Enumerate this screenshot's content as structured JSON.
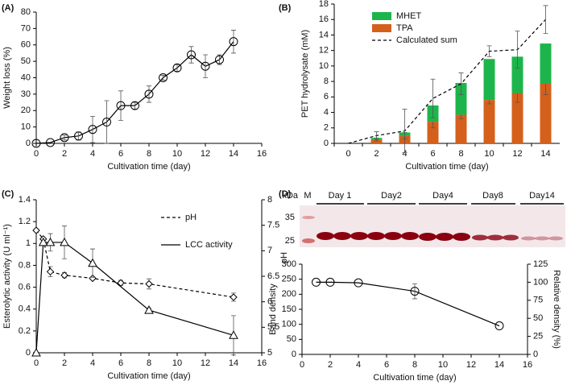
{
  "chart_data": [
    {
      "type": "line",
      "panel": "(A)",
      "x_label": "Cultivation time (day)",
      "y_label": "Weight loss (%)",
      "xlim": [
        0,
        16
      ],
      "xticks": [
        0,
        2,
        4,
        6,
        8,
        10,
        12,
        14,
        16
      ],
      "ylim": [
        0,
        80
      ],
      "yticks": [
        0,
        10,
        20,
        30,
        40,
        50,
        60,
        70,
        80
      ],
      "x": [
        0,
        1,
        2,
        3,
        4,
        5,
        6,
        7,
        8,
        9,
        10,
        11,
        12,
        13,
        14
      ],
      "series": [
        {
          "color": "#000000",
          "marker": "circle",
          "values": [
            0,
            0.5,
            3.5,
            4.5,
            8.5,
            13,
            23,
            23,
            30,
            40,
            46,
            54,
            47,
            51,
            62
          ],
          "errors": [
            0,
            0,
            1.5,
            2.5,
            8,
            13,
            9,
            2,
            5,
            1.5,
            2,
            5,
            7,
            3,
            7
          ]
        }
      ]
    },
    {
      "type": "bar",
      "panel": "(B)",
      "x_label": "Cultivation time (day)",
      "y_label": "PET hydrolysate (mM)",
      "categories": [
        "0",
        "2",
        "4",
        "6",
        "8",
        "10",
        "12",
        "14"
      ],
      "ylim": [
        0,
        18
      ],
      "yticks": [
        0,
        2,
        4,
        6,
        8,
        10,
        12,
        14,
        16,
        18
      ],
      "stacked": true,
      "series": [
        {
          "name": "MHET",
          "color": "#1db54b",
          "values": [
            0,
            0.2,
            0.4,
            2.1,
            4.1,
            5.3,
            4.7,
            5.2
          ]
        },
        {
          "name": "TPA",
          "color": "#d4601c",
          "values": [
            0,
            0.5,
            1.0,
            2.8,
            3.7,
            5.6,
            6.5,
            7.7
          ],
          "errors": [
            0,
            0.2,
            0.4,
            0.8,
            0.5,
            0.5,
            1.2,
            1.4
          ]
        },
        {
          "name": "Calculated sum",
          "type": "line",
          "dash": true,
          "color": "#000000",
          "values": [
            0,
            1.0,
            1.6,
            5.8,
            7.7,
            11.9,
            12.1,
            16.0
          ],
          "errors": [
            0,
            0.5,
            2.8,
            2.5,
            1.4,
            0.7,
            2.4,
            1.8
          ]
        }
      ]
    },
    {
      "type": "line",
      "panel": "(C)",
      "x_label": "Cultivation time (day)",
      "y_label": "Esterolytic activity (U ml⁻¹)",
      "xlim": [
        0,
        16
      ],
      "xticks": [
        0,
        2,
        4,
        6,
        8,
        10,
        12,
        14,
        16
      ],
      "ylim": [
        0,
        1.4
      ],
      "yticks": [
        0,
        0.2,
        0.4,
        0.6,
        0.8,
        1,
        1.2,
        1.4
      ],
      "y2lim": [
        5,
        8
      ],
      "y2ticks": [
        5,
        5.5,
        6,
        6.5,
        7,
        7.5,
        8
      ],
      "series": [
        {
          "name": "pH",
          "axis": "y2",
          "dash": true,
          "color": "#000000",
          "marker": "diamond",
          "x": [
            0,
            0.5,
            1,
            2,
            4,
            6,
            8,
            14
          ],
          "values": [
            7.4,
            7.23,
            6.59,
            6.52,
            6.46,
            6.37,
            6.35,
            6.09
          ],
          "errors": [
            0,
            0,
            0.1,
            0.05,
            0,
            0.05,
            0.1,
            0.08
          ]
        },
        {
          "name": "LCC activity",
          "color": "#000000",
          "marker": "triangle",
          "x": [
            0,
            0.5,
            1,
            2,
            4,
            8,
            14
          ],
          "values": [
            0,
            1.01,
            1.01,
            1.01,
            0.82,
            0.39,
            0.16
          ],
          "errors": [
            0,
            0,
            0.08,
            0.15,
            0.13,
            0.02,
            0.18
          ]
        }
      ]
    },
    {
      "type": "line",
      "annotation": "pH",
      "x_label": "Cultivation time (day)",
      "y_label": "Band density",
      "y2_label": "Relative density (%)",
      "xlim": [
        0,
        16
      ],
      "xticks": [
        0,
        2,
        4,
        6,
        8,
        10,
        12,
        14,
        16
      ],
      "ylim": [
        0,
        300
      ],
      "yticks": [
        0,
        50,
        100,
        150,
        200,
        250,
        300
      ],
      "y2lim": [
        0,
        125
      ],
      "y2ticks": [
        0,
        25,
        50,
        75,
        100,
        125
      ],
      "series": [
        {
          "color": "#000000",
          "marker": "circle",
          "x": [
            1,
            2,
            4,
            8,
            14
          ],
          "values": [
            240,
            240,
            238,
            210,
            95
          ],
          "errors": [
            0,
            0,
            0,
            25,
            0
          ]
        }
      ]
    }
  ],
  "gel": {
    "panel": "(D)",
    "unit": "kDa",
    "marker_lane": "M",
    "lanes": [
      "Day 1",
      "Day2",
      "Day4",
      "Day8",
      "Day14"
    ],
    "sizes": [
      "35",
      "25"
    ]
  }
}
